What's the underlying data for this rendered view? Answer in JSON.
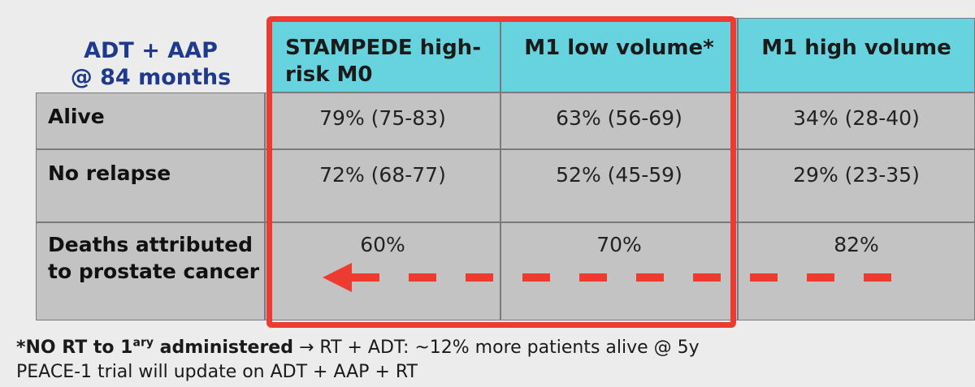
{
  "table": {
    "corner_title_line1": "ADT + AAP",
    "corner_title_line2": "@ 84 months",
    "headers": [
      "STAMPEDE high-risk M0",
      "M1 low volume*",
      "M1 high volume"
    ],
    "rows": [
      {
        "label": "Alive",
        "values": [
          "79% (75-83)",
          "63% (56-69)",
          "34% (28-40)"
        ]
      },
      {
        "label": "No relapse",
        "values": [
          "72% (68-77)",
          "52% (45-59)",
          "29% (23-35)"
        ]
      },
      {
        "label": "Deaths attributed to prostate cancer",
        "values": [
          "60%",
          "70%",
          "82%"
        ]
      }
    ]
  },
  "highlight": {
    "color": "#ee3b32"
  },
  "colors": {
    "header_bg": "#66d3df",
    "cell_bg": "#c3c3c3",
    "title_color": "#1f3a8c",
    "arrow_color": "#ee3b32"
  },
  "footnotes": {
    "line1_bold": "*NO RT to 1",
    "line1_sup": "ary",
    "line1_bold_end": " administered",
    "line1_rest": " → RT + ADT: ~12% more patients alive @ 5y",
    "line2": "PEACE-1 trial will update on ADT + AAP + RT"
  },
  "icons": {
    "arrow": "dashed-left-arrow-icon"
  }
}
